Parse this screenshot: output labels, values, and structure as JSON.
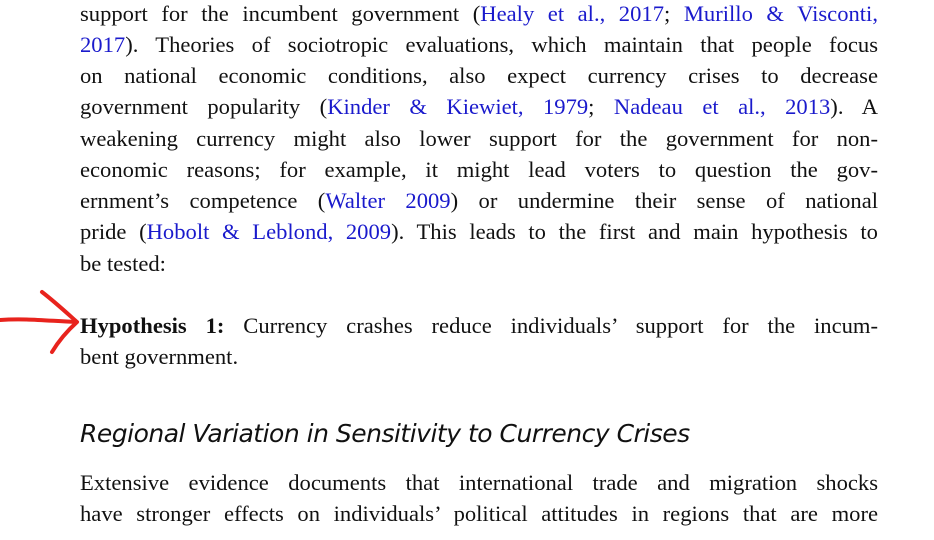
{
  "paragraphs": [
    {
      "lines": [
        [
          "support for the incumbent government (",
          {
            "cite": "Healy et al., 2017"
          },
          "; ",
          {
            "cite": "Murillo & Visconti,"
          }
        ],
        [
          {
            "cite": "2017"
          },
          "). Theories of sociotropic evaluations, which maintain that people focus"
        ],
        [
          "on national economic conditions, also expect currency crises to decrease"
        ],
        [
          "government popularity (",
          {
            "cite": "Kinder & Kiewiet, 1979"
          },
          "; ",
          {
            "cite": "Nadeau et al., 2013"
          },
          "). A"
        ],
        [
          "weakening currency might also lower support for the government for non-"
        ],
        [
          "economic reasons; for example, it might lead voters to question the gov-"
        ],
        [
          "ernment’s competence (",
          {
            "cite": "Walter 2009"
          },
          ") or undermine their sense of national"
        ],
        [
          "pride (",
          {
            "cite": "Hobolt & Leblond, 2009"
          },
          "). This leads to the first and main hypothesis to"
        ],
        [
          "be tested:"
        ]
      ]
    },
    {
      "lines": [
        [
          {
            "bold": "Hypothesis 1:"
          },
          " Currency crashes reduce individuals’ support for the incum-"
        ],
        [
          "bent government."
        ]
      ]
    },
    {
      "heading": "Regional Variation in Sensitivity to Currency Crises"
    },
    {
      "lines": [
        [
          "Extensive evidence documents that international trade and migration shocks"
        ],
        [
          "have stronger effects on individuals’ political attitudes in regions that are more"
        ]
      ]
    }
  ]
}
